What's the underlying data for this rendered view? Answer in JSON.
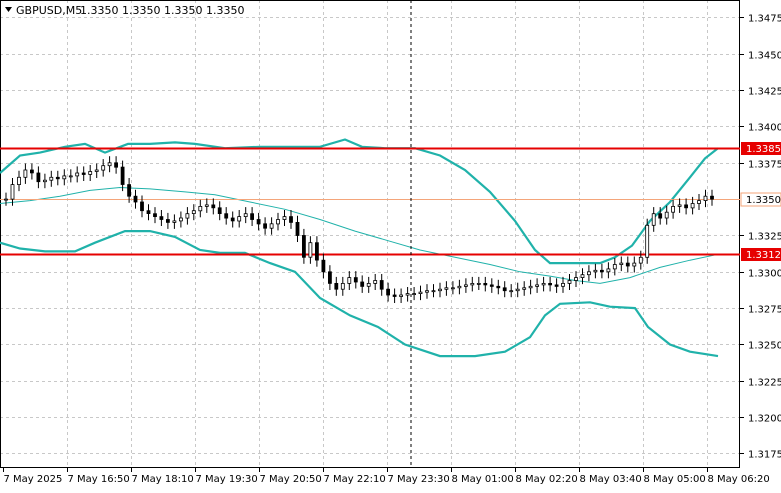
{
  "header": {
    "symbol": "GBPUSD,M5",
    "quote": "1.3350 1.3350 1.3350 1.3350"
  },
  "price_axis": {
    "ticks": [
      "1.3475",
      "1.3450",
      "1.3425",
      "1.3400",
      "1.3375",
      "1.3325",
      "1.3300",
      "1.3275",
      "1.3250",
      "1.3225",
      "1.3200",
      "1.3175"
    ]
  },
  "time_axis": {
    "ticks": [
      "7 May 2025",
      "7 May 16:50",
      "7 May 18:10",
      "7 May 19:30",
      "7 May 20:50",
      "7 May 22:10",
      "7 May 23:30",
      "8 May 01:00",
      "8 May 02:20",
      "8 May 03:40",
      "8 May 05:00",
      "8 May 06:20"
    ]
  },
  "levels": [
    {
      "label": "1.3385",
      "color": "#e60000"
    },
    {
      "label": "1.3312",
      "color": "#e60000"
    }
  ],
  "current_price": {
    "label": "1.3350",
    "line_color": "#f4a57a"
  },
  "colors": {
    "band": "#20b2aa",
    "candle": "#000000",
    "grid": "#c8c8c8",
    "crosshair": "#000000"
  },
  "chart_data": {
    "type": "candlestick",
    "title": "GBPUSD,M5",
    "ylim": [
      1.3165,
      1.3487
    ],
    "grid": true,
    "horizontal_levels": [
      1.3385,
      1.3312
    ],
    "current_price": 1.335,
    "close_series": [
      1.335,
      1.336,
      1.3365,
      1.337,
      1.3368,
      1.3362,
      1.3363,
      1.3365,
      1.3364,
      1.3366,
      1.3366,
      1.3368,
      1.3367,
      1.3369,
      1.337,
      1.3373,
      1.3375,
      1.3372,
      1.336,
      1.3352,
      1.3348,
      1.3342,
      1.334,
      1.3338,
      1.3336,
      1.3334,
      1.3335,
      1.3337,
      1.334,
      1.3342,
      1.3345,
      1.3346,
      1.3344,
      1.334,
      1.3337,
      1.3335,
      1.3338,
      1.334,
      1.3336,
      1.3333,
      1.333,
      1.3333,
      1.3336,
      1.3338,
      1.3334,
      1.3325,
      1.331,
      1.332,
      1.3308,
      1.33,
      1.3292,
      1.3288,
      1.3292,
      1.3296,
      1.3293,
      1.329,
      1.3292,
      1.3294,
      1.3288,
      1.3284,
      1.3283,
      1.3284,
      1.3285,
      1.3285,
      1.3286,
      1.3287,
      1.3287,
      1.3288,
      1.3289,
      1.3289,
      1.329,
      1.3291,
      1.3292,
      1.3292,
      1.3291,
      1.329,
      1.3289,
      1.3287,
      1.3287,
      1.3288,
      1.3289,
      1.329,
      1.3291,
      1.3292,
      1.3291,
      1.329,
      1.3292,
      1.3294,
      1.3296,
      1.3298,
      1.33,
      1.3301,
      1.33,
      1.3302,
      1.3305,
      1.3306,
      1.3304,
      1.3306,
      1.331,
      1.3332,
      1.334,
      1.3337,
      1.3341,
      1.3345,
      1.3346,
      1.3344,
      1.3347,
      1.3349,
      1.3352,
      1.335
    ],
    "bollinger": {
      "upper": [
        [
          0,
          1.3368
        ],
        [
          20,
          1.338
        ],
        [
          40,
          1.3382
        ],
        [
          65,
          1.3386
        ],
        [
          85,
          1.3388
        ],
        [
          105,
          1.3382
        ],
        [
          128,
          1.3388
        ],
        [
          150,
          1.3388
        ],
        [
          175,
          1.3389
        ],
        [
          195,
          1.3388
        ],
        [
          225,
          1.3385
        ],
        [
          260,
          1.3386
        ],
        [
          290,
          1.3386
        ],
        [
          320,
          1.3386
        ],
        [
          345,
          1.3391
        ],
        [
          362,
          1.3386
        ],
        [
          385,
          1.3385
        ],
        [
          415,
          1.3385
        ],
        [
          440,
          1.338
        ],
        [
          465,
          1.337
        ],
        [
          490,
          1.3355
        ],
        [
          515,
          1.3335
        ],
        [
          535,
          1.3315
        ],
        [
          550,
          1.3306
        ],
        [
          575,
          1.3306
        ],
        [
          600,
          1.3306
        ],
        [
          615,
          1.331
        ],
        [
          632,
          1.3318
        ],
        [
          650,
          1.3335
        ],
        [
          670,
          1.3348
        ],
        [
          690,
          1.3365
        ],
        [
          705,
          1.3378
        ],
        [
          718,
          1.3385
        ]
      ],
      "middle": [
        [
          0,
          1.3347
        ],
        [
          30,
          1.3349
        ],
        [
          60,
          1.3352
        ],
        [
          90,
          1.3356
        ],
        [
          120,
          1.3358
        ],
        [
          150,
          1.3357
        ],
        [
          185,
          1.3355
        ],
        [
          215,
          1.3353
        ],
        [
          250,
          1.3348
        ],
        [
          285,
          1.3343
        ],
        [
          320,
          1.3336
        ],
        [
          355,
          1.3328
        ],
        [
          385,
          1.3322
        ],
        [
          420,
          1.3315
        ],
        [
          455,
          1.331
        ],
        [
          490,
          1.3305
        ],
        [
          520,
          1.33
        ],
        [
          550,
          1.3297
        ],
        [
          575,
          1.3294
        ],
        [
          600,
          1.3292
        ],
        [
          630,
          1.3296
        ],
        [
          660,
          1.3303
        ],
        [
          690,
          1.3308
        ],
        [
          718,
          1.3312
        ]
      ],
      "lower": [
        [
          0,
          1.332
        ],
        [
          20,
          1.3316
        ],
        [
          45,
          1.3314
        ],
        [
          75,
          1.3314
        ],
        [
          95,
          1.332
        ],
        [
          125,
          1.3328
        ],
        [
          150,
          1.3328
        ],
        [
          175,
          1.3324
        ],
        [
          200,
          1.3315
        ],
        [
          220,
          1.3313
        ],
        [
          245,
          1.3313
        ],
        [
          270,
          1.3306
        ],
        [
          295,
          1.33
        ],
        [
          320,
          1.3282
        ],
        [
          350,
          1.327
        ],
        [
          378,
          1.3262
        ],
        [
          405,
          1.325
        ],
        [
          440,
          1.3242
        ],
        [
          475,
          1.3242
        ],
        [
          505,
          1.3245
        ],
        [
          530,
          1.3255
        ],
        [
          545,
          1.327
        ],
        [
          560,
          1.3278
        ],
        [
          590,
          1.3279
        ],
        [
          610,
          1.3276
        ],
        [
          635,
          1.3275
        ],
        [
          648,
          1.3262
        ],
        [
          670,
          1.325
        ],
        [
          690,
          1.3245
        ],
        [
          718,
          1.3242
        ]
      ]
    }
  }
}
